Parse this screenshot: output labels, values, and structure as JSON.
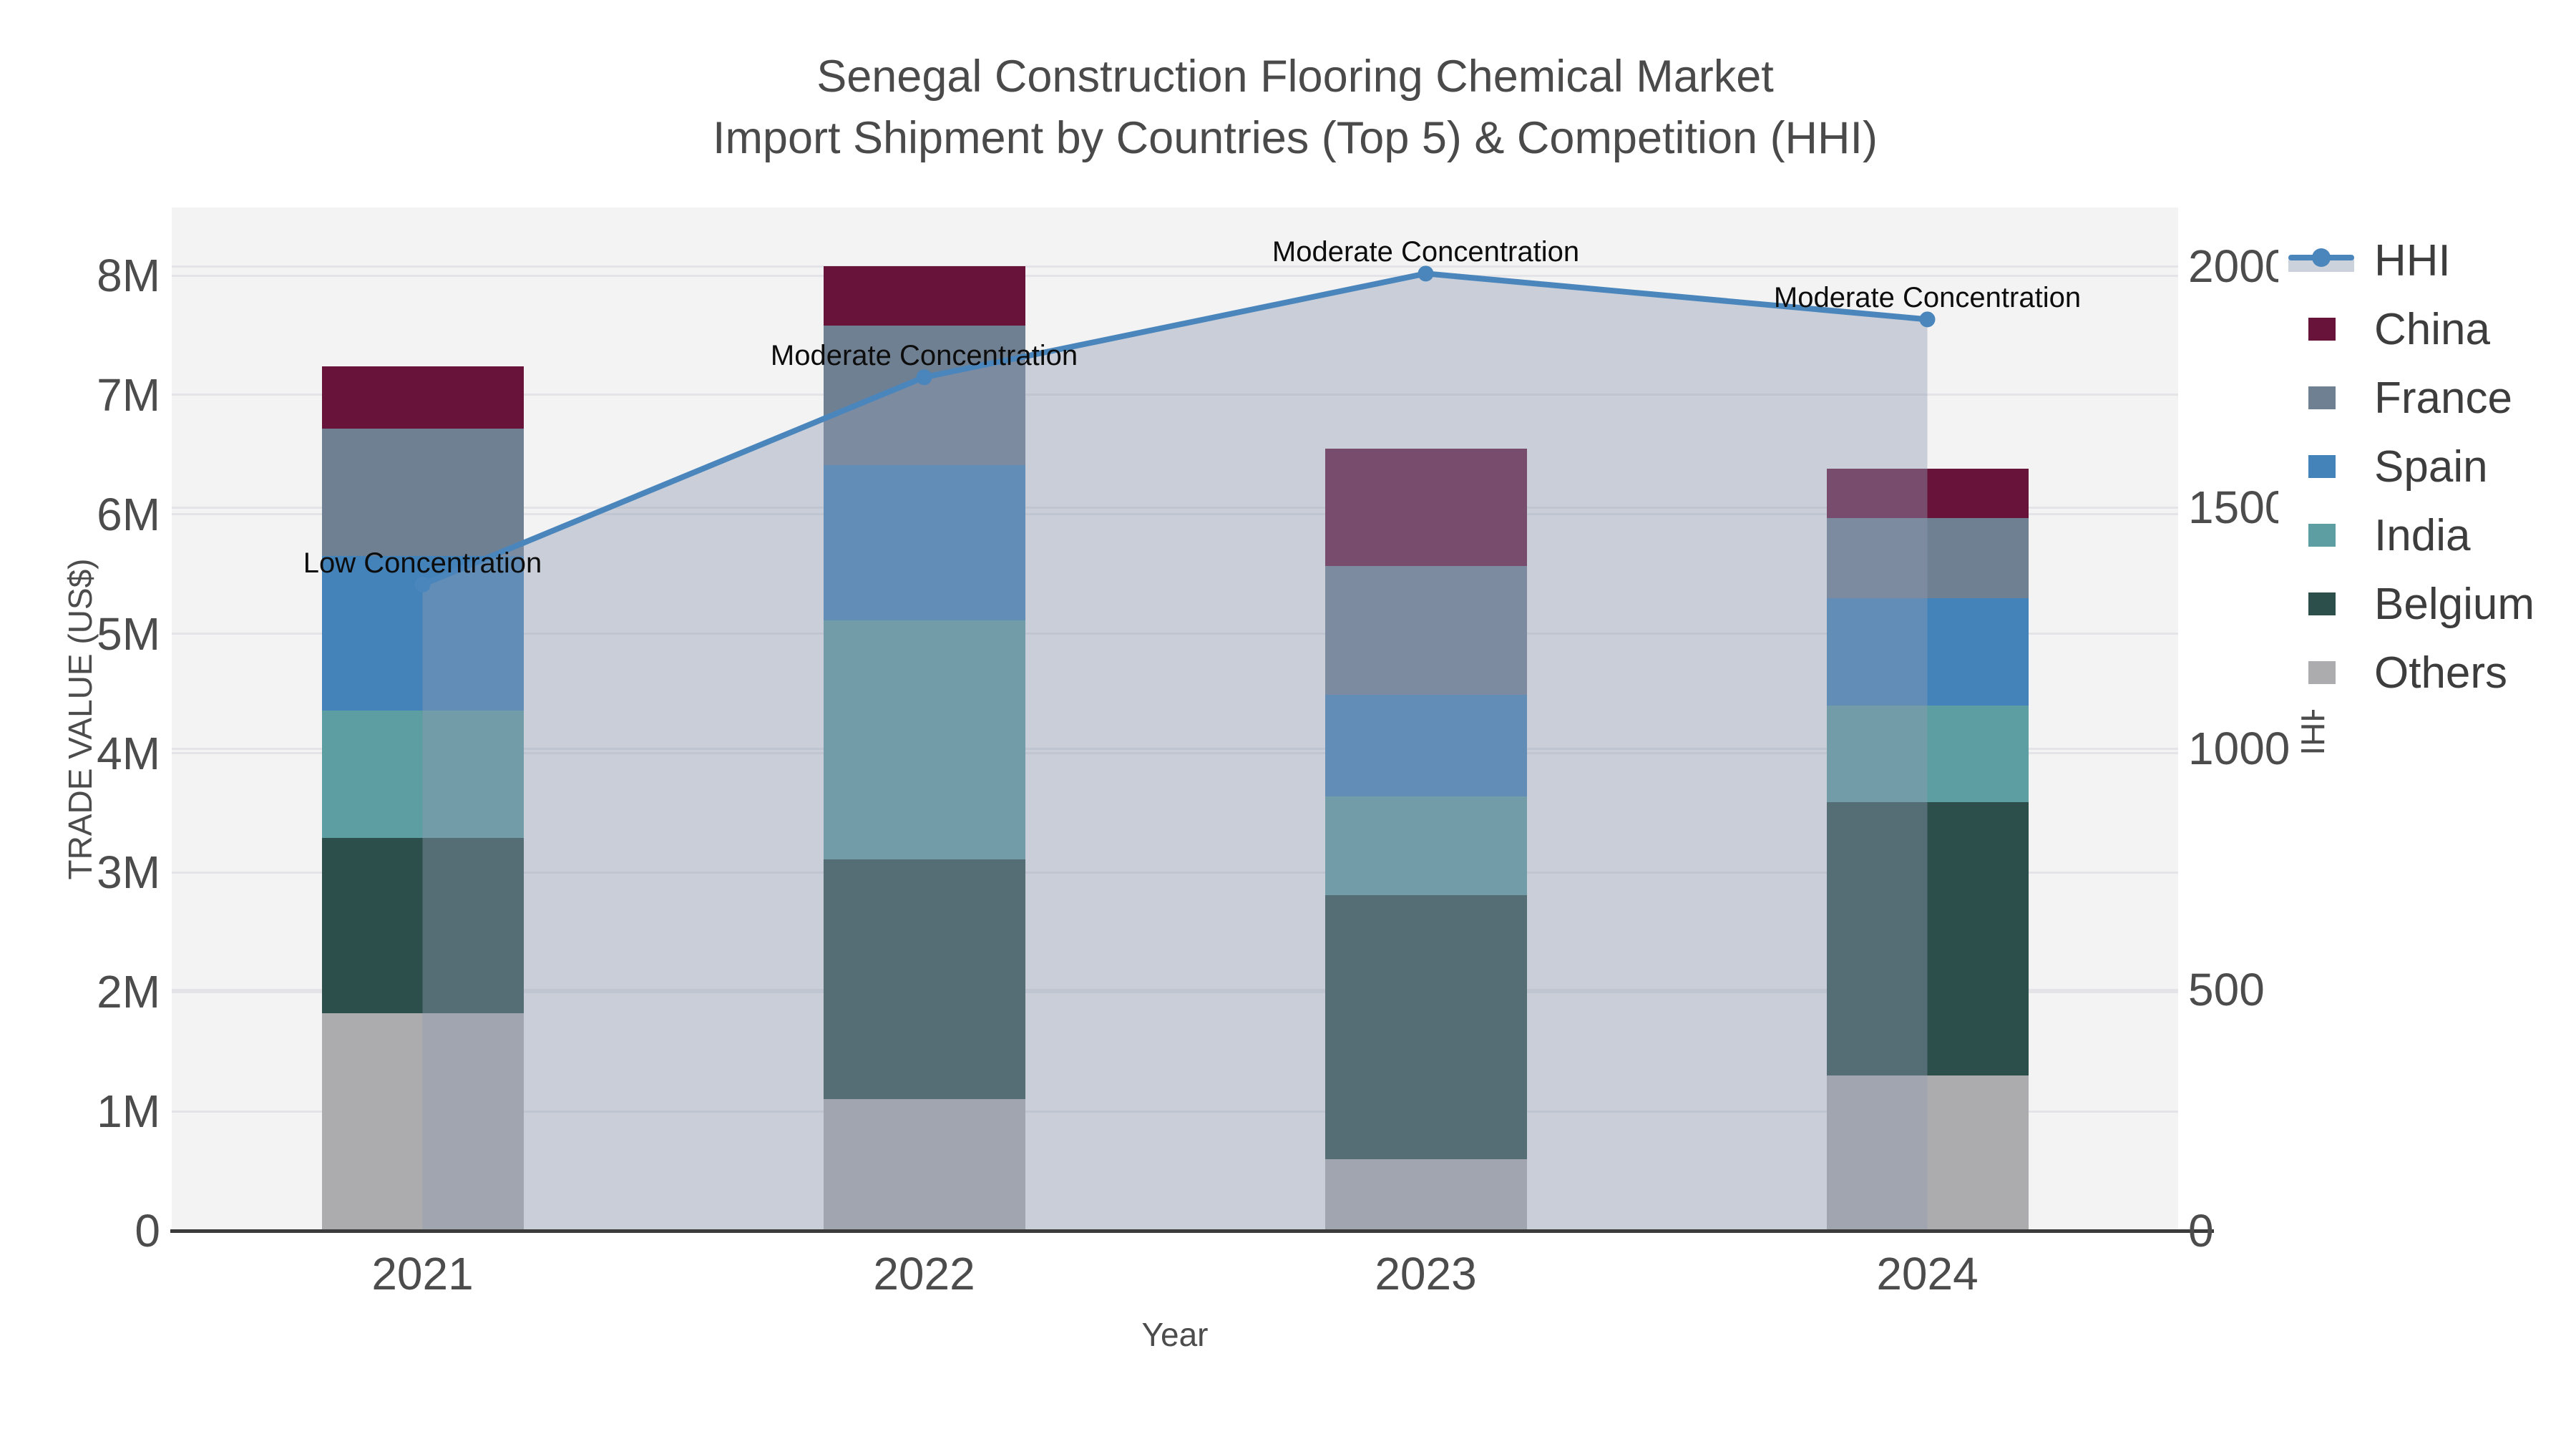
{
  "chart_data": {
    "type": "bar",
    "stacked": true,
    "title": "Senegal Construction Flooring Chemical Market",
    "subtitle": "Import Shipment by Countries (Top 5) & Competition (HHI)",
    "categories": [
      "2021",
      "2022",
      "2023",
      "2024"
    ],
    "series": [
      {
        "name": "China",
        "color": "#68143a",
        "values": [
          520000,
          500000,
          980000,
          410000
        ]
      },
      {
        "name": "France",
        "color": "#708093",
        "values": [
          1070000,
          1170000,
          1080000,
          670000
        ]
      },
      {
        "name": "Spain",
        "color": "#4383ba",
        "values": [
          1290000,
          1300000,
          850000,
          900000
        ]
      },
      {
        "name": "India",
        "color": "#5c9ea1",
        "values": [
          1070000,
          2000000,
          830000,
          810000
        ]
      },
      {
        "name": "Belgium",
        "color": "#2c4f4b",
        "values": [
          1470000,
          2010000,
          2210000,
          2290000
        ]
      },
      {
        "name": "Others",
        "color": "#acacae",
        "values": [
          1820000,
          1100000,
          600000,
          1300000
        ]
      }
    ],
    "line_series": {
      "name": "HHI",
      "color": "#4a86bc",
      "area_fill": "rgba(142,156,178,0.42)",
      "values": [
        1340,
        1770,
        1985,
        1890
      ]
    },
    "annotations": [
      {
        "x": "2021",
        "text": "Low Concentration"
      },
      {
        "x": "2022",
        "text": "Moderate Concentration"
      },
      {
        "x": "2023",
        "text": "Moderate Concentration"
      },
      {
        "x": "2024",
        "text": "Moderate Concentration"
      }
    ],
    "x_axis": {
      "title": "Year"
    },
    "left_axis": {
      "title": "TRADE VALUE (US$)",
      "ticks": [
        {
          "v": 0,
          "label": "0"
        },
        {
          "v": 1000000,
          "label": "1M"
        },
        {
          "v": 2000000,
          "label": "2M"
        },
        {
          "v": 3000000,
          "label": "3M"
        },
        {
          "v": 4000000,
          "label": "4M"
        },
        {
          "v": 5000000,
          "label": "5M"
        },
        {
          "v": 6000000,
          "label": "6M"
        },
        {
          "v": 7000000,
          "label": "7M"
        },
        {
          "v": 8000000,
          "label": "8M"
        }
      ],
      "range": [
        0,
        8570000
      ]
    },
    "right_axis": {
      "title": "HHI",
      "ticks": [
        {
          "v": 0,
          "label": "0"
        },
        {
          "v": 500,
          "label": "500"
        },
        {
          "v": 1000,
          "label": "1000"
        },
        {
          "v": 1500,
          "label": "1500"
        },
        {
          "v": 2000,
          "label": "2000"
        }
      ],
      "range": [
        0,
        2122
      ]
    },
    "legend_position": "right-top-outside",
    "grid": true,
    "colors": {
      "plot_bg": "#f3f3f3",
      "grid": "#e4e4e8",
      "axis_line": "#3b3b3b",
      "tick_text": "#4c4c4c",
      "title_text": "#4a4a4a",
      "annotation_text": "#0d0d0d"
    }
  }
}
